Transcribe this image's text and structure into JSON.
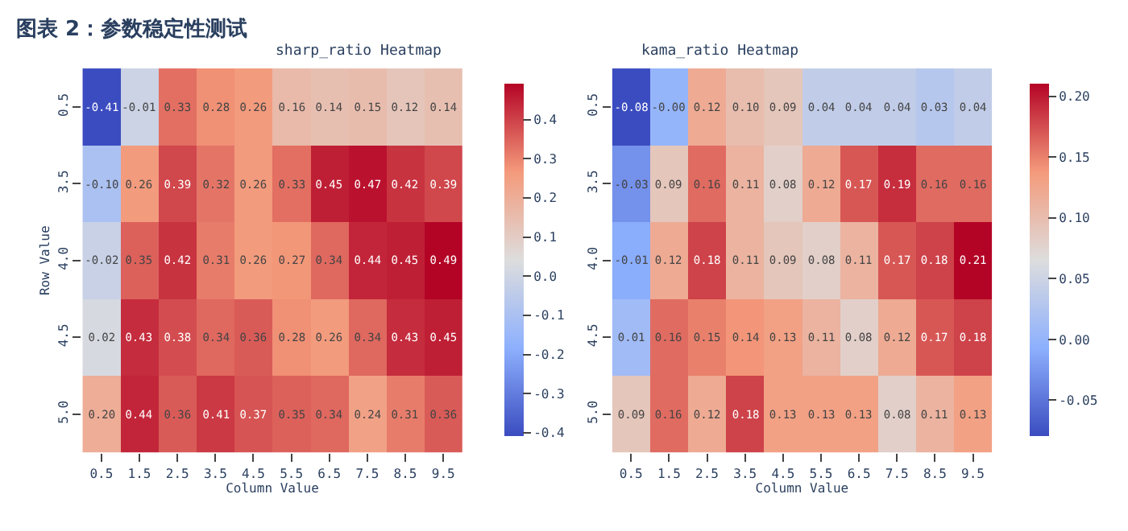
{
  "chart_data": [
    {
      "type": "heatmap",
      "title": "sharp_ratio Heatmap",
      "annotations": [
        "图表 2：参数稳定性测试"
      ],
      "xlabel": "Column Value",
      "ylabel": "Row Value",
      "categories": [
        "0.5",
        "1.5",
        "2.5",
        "3.5",
        "4.5",
        "5.5",
        "6.5",
        "7.5",
        "8.5",
        "9.5"
      ],
      "y_categories": [
        "0.5",
        "3.5",
        "4.0",
        "4.5",
        "5.0"
      ],
      "cells": [
        [
          -0.41,
          -0.01,
          0.33,
          0.28,
          0.26,
          0.16,
          0.14,
          0.15,
          0.12,
          0.14
        ],
        [
          -0.1,
          0.26,
          0.39,
          0.32,
          0.26,
          0.33,
          0.45,
          0.47,
          0.42,
          0.39
        ],
        [
          -0.02,
          0.35,
          0.42,
          0.31,
          0.26,
          0.27,
          0.34,
          0.44,
          0.45,
          0.49
        ],
        [
          0.02,
          0.43,
          0.38,
          0.34,
          0.36,
          0.28,
          0.26,
          0.34,
          0.43,
          0.45
        ],
        [
          0.2,
          0.44,
          0.36,
          0.41,
          0.37,
          0.35,
          0.34,
          0.24,
          0.31,
          0.36
        ]
      ],
      "cell_labels": [
        [
          "-0.41",
          "-0.01",
          "0.33",
          "0.28",
          "0.26",
          "0.16",
          "0.14",
          "0.15",
          "0.12",
          "0.14"
        ],
        [
          "-0.10",
          "0.26",
          "0.39",
          "0.32",
          "0.26",
          "0.33",
          "0.45",
          "0.47",
          "0.42",
          "0.39"
        ],
        [
          "-0.02",
          "0.35",
          "0.42",
          "0.31",
          "0.26",
          "0.27",
          "0.34",
          "0.44",
          "0.45",
          "0.49"
        ],
        [
          "0.02",
          "0.43",
          "0.38",
          "0.34",
          "0.36",
          "0.28",
          "0.26",
          "0.34",
          "0.43",
          "0.45"
        ],
        [
          "0.20",
          "0.44",
          "0.36",
          "0.41",
          "0.37",
          "0.35",
          "0.34",
          "0.24",
          "0.31",
          "0.36"
        ]
      ],
      "clim": [
        -0.41,
        0.49
      ],
      "cticks": [
        -0.4,
        -0.3,
        -0.2,
        -0.1,
        {
          "value": 0,
          "label": "0.0"
        },
        0.1,
        0.2,
        0.3,
        0.4
      ]
    },
    {
      "type": "heatmap",
      "title": "kama_ratio Heatmap",
      "xlabel": "Column Value",
      "categories": [
        "0.5",
        "1.5",
        "2.5",
        "3.5",
        "4.5",
        "5.5",
        "6.5",
        "7.5",
        "8.5",
        "9.5"
      ],
      "y_categories": [
        "0.5",
        "3.5",
        "4.0",
        "4.5",
        "5.0"
      ],
      "cells": [
        [
          -0.08,
          -0.0,
          0.12,
          0.1,
          0.09,
          0.04,
          0.04,
          0.04,
          0.03,
          0.04
        ],
        [
          -0.03,
          0.09,
          0.16,
          0.11,
          0.08,
          0.12,
          0.17,
          0.19,
          0.16,
          0.16
        ],
        [
          -0.01,
          0.12,
          0.18,
          0.11,
          0.09,
          0.08,
          0.11,
          0.17,
          0.18,
          0.21
        ],
        [
          0.01,
          0.16,
          0.15,
          0.14,
          0.13,
          0.11,
          0.08,
          0.12,
          0.17,
          0.18
        ],
        [
          0.09,
          0.16,
          0.12,
          0.18,
          0.13,
          0.13,
          0.13,
          0.08,
          0.11,
          0.13
        ]
      ],
      "cell_labels": [
        [
          "-0.08",
          "-0.00",
          "0.12",
          "0.10",
          "0.09",
          "0.04",
          "0.04",
          "0.04",
          "0.03",
          "0.04"
        ],
        [
          "-0.03",
          "0.09",
          "0.16",
          "0.11",
          "0.08",
          "0.12",
          "0.17",
          "0.19",
          "0.16",
          "0.16"
        ],
        [
          "-0.01",
          "0.12",
          "0.18",
          "0.11",
          "0.09",
          "0.08",
          "0.11",
          "0.17",
          "0.18",
          "0.21"
        ],
        [
          "0.01",
          "0.16",
          "0.15",
          "0.14",
          "0.13",
          "0.11",
          "0.08",
          "0.12",
          "0.17",
          "0.18"
        ],
        [
          "0.09",
          "0.16",
          "0.12",
          "0.18",
          "0.13",
          "0.13",
          "0.13",
          "0.08",
          "0.11",
          "0.13"
        ]
      ],
      "clim": [
        -0.08,
        0.21
      ],
      "cticks": [
        -0.05,
        {
          "value": 0,
          "label": "0.00"
        },
        {
          "value": 0.05,
          "label": "0.05"
        },
        {
          "value": 0.1,
          "label": "0.10"
        },
        {
          "value": 0.15,
          "label": "0.15"
        },
        {
          "value": 0.2,
          "label": "0.20"
        }
      ]
    }
  ]
}
